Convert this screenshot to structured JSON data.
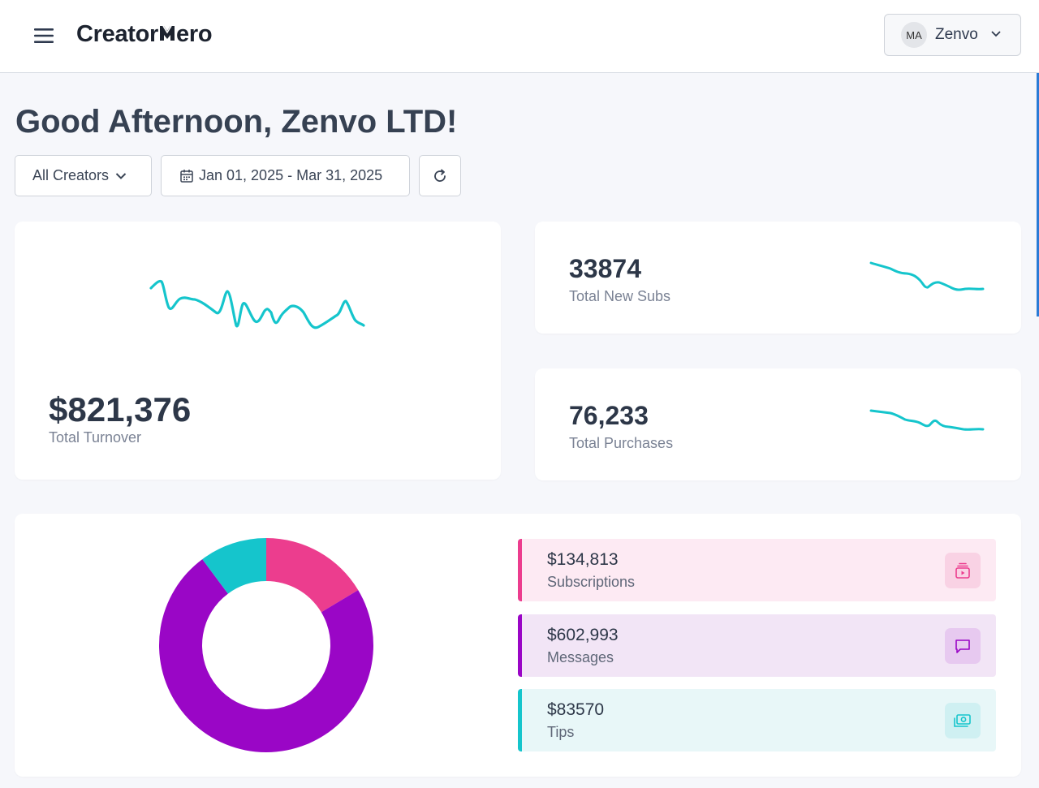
{
  "header": {
    "logo_text_part1": "Creator",
    "logo_text_part2": "ero",
    "account": {
      "initials": "MA",
      "name": "Zenvo"
    }
  },
  "greeting": "Good Afternoon, Zenvo LTD!",
  "filters": {
    "creators_label": "All Creators",
    "date_range": "Jan 01, 2025 - Mar 31, 2025"
  },
  "stats": {
    "turnover": {
      "value": "$821,376",
      "label": "Total Turnover"
    },
    "new_subs": {
      "value": "33874",
      "label": "Total New Subs"
    },
    "purchases": {
      "value": "76,233",
      "label": "Total Purchases"
    }
  },
  "breakdown": [
    {
      "value": "$134,813",
      "label": "Subscriptions",
      "color": "#ec3d8e",
      "icon": "subscription-icon"
    },
    {
      "value": "$602,993",
      "label": "Messages",
      "color": "#9a06c6",
      "icon": "message-icon"
    },
    {
      "value": "$83570",
      "label": "Tips",
      "color": "#15c5cc",
      "icon": "money-icon"
    }
  ],
  "chart_data": {
    "type": "pie",
    "categories": [
      "Subscriptions",
      "Messages",
      "Tips"
    ],
    "values": [
      134813,
      602993,
      83570
    ],
    "colors": [
      "#ec3d8e",
      "#9a06c6",
      "#15c5cc"
    ],
    "title": ""
  },
  "colors": {
    "accent": "#15c5cc",
    "text_dark": "#2d3748",
    "text_muted": "#7a8294"
  }
}
